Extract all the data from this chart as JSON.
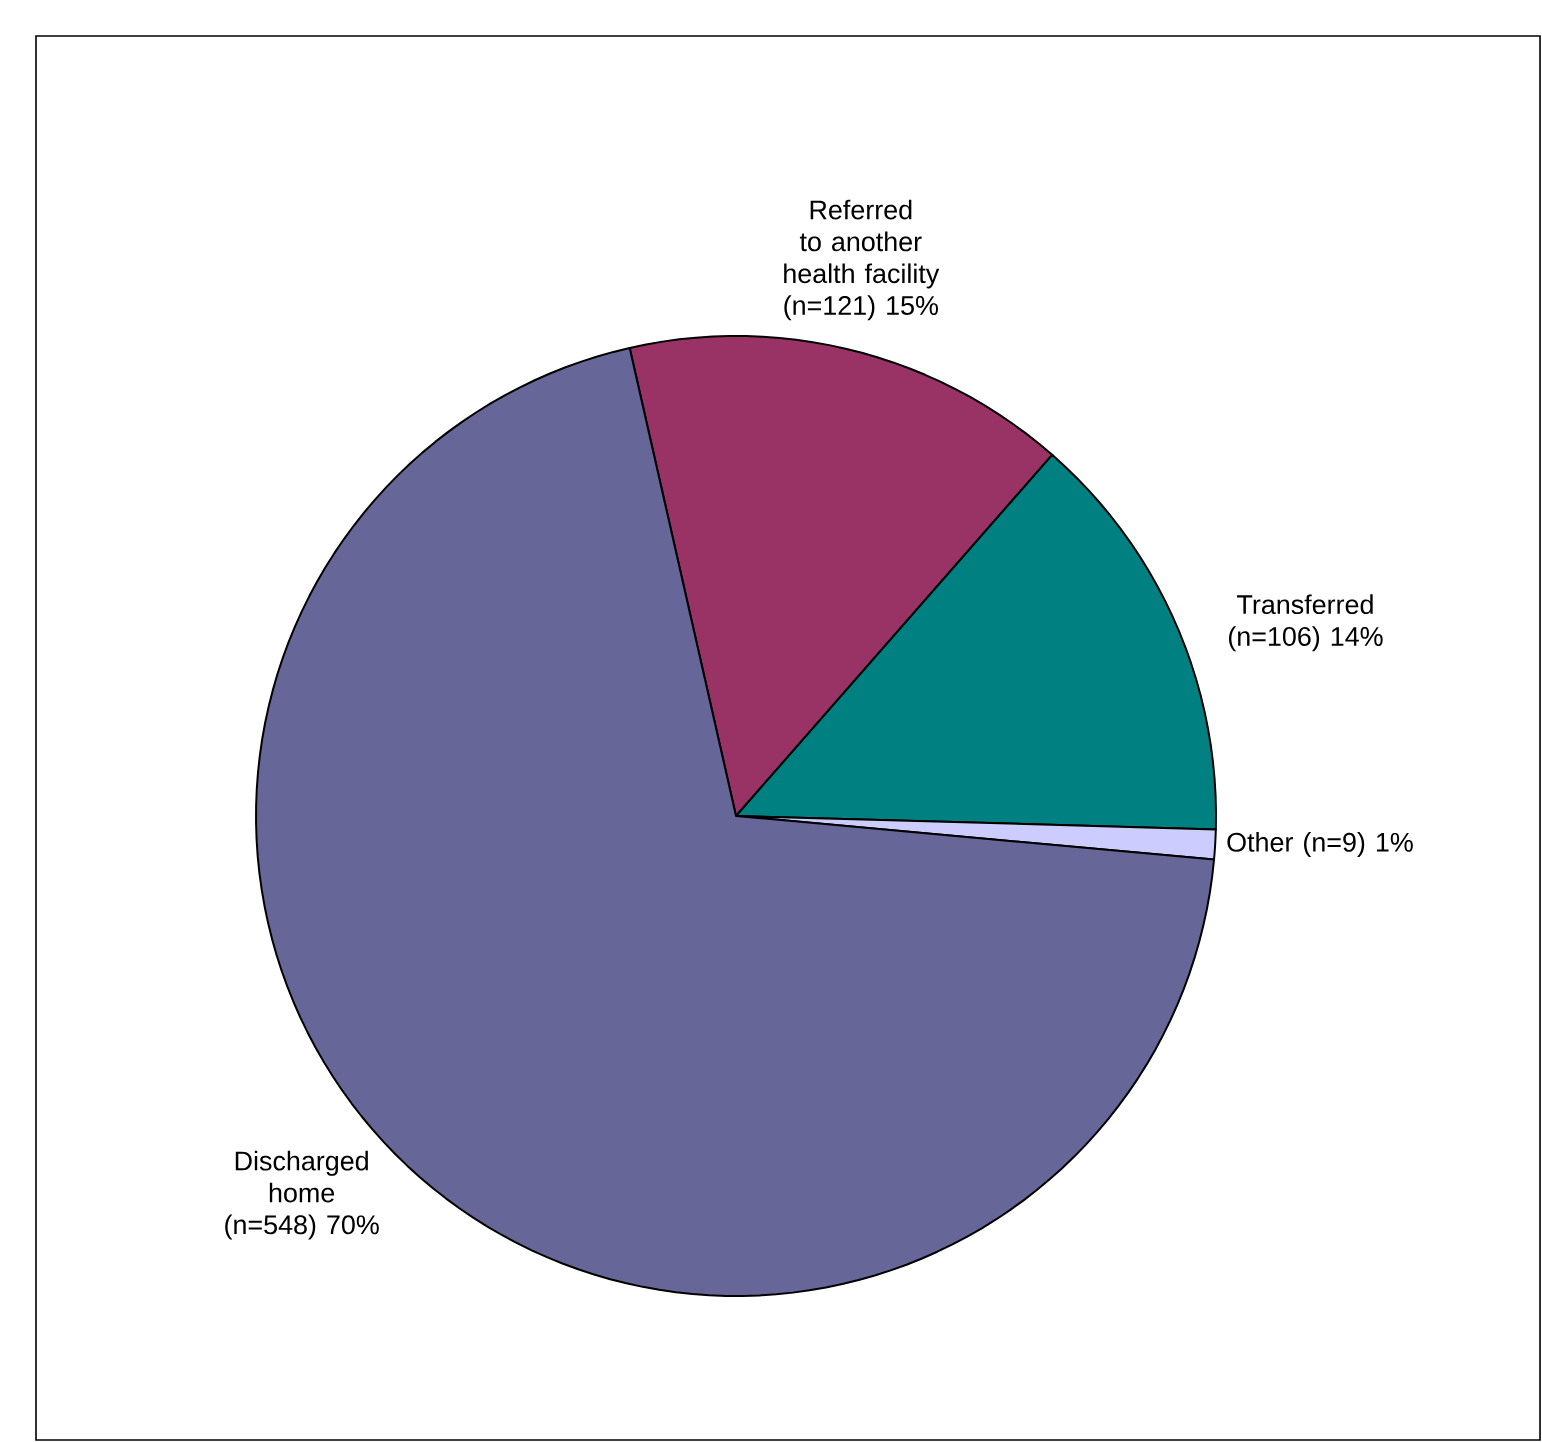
{
  "chart_data": {
    "type": "pie",
    "categories": [
      "Referred to another health facility (n=121)",
      "Transferred (n=106)",
      "Other (n=9)",
      "Discharged home (n=548)"
    ],
    "values": [
      15,
      14,
      1,
      70
    ],
    "value_labels": [
      "15%",
      "14%",
      "1%",
      "70%"
    ],
    "colors": [
      "#993366",
      "#008080",
      "#ccccff",
      "#666699"
    ]
  }
}
